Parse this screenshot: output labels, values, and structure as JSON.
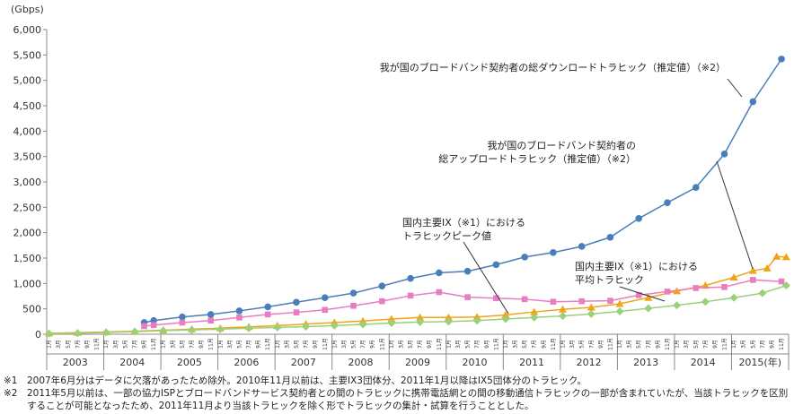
{
  "chart_data": {
    "type": "line",
    "unit_label": "(Gbps)",
    "ylim": [
      0,
      6000
    ],
    "y_ticks": [
      "0",
      "500",
      "1,000",
      "1,500",
      "2,000",
      "2,500",
      "3,000",
      "3,500",
      "4,000",
      "4,500",
      "5,000",
      "5,500",
      "6,000"
    ],
    "month_labels": [
      "1月",
      "3月",
      "5月",
      "7月",
      "9月",
      "11月"
    ],
    "years": [
      "2003",
      "2004",
      "2005",
      "2006",
      "2007",
      "2008",
      "2009",
      "2010",
      "2011",
      "2012",
      "2013",
      "2014",
      "2015(年)"
    ],
    "grid": false,
    "series": [
      {
        "name": "我が国のブロードバンド契約者の総ダウンロードトラヒック（推定値）（※2）",
        "color": "#4a7ebb",
        "marker": "circle",
        "points": [
          [
            "2004-09",
            230
          ],
          [
            "2004-11",
            270
          ],
          [
            "2005-05",
            340
          ],
          [
            "2005-11",
            390
          ],
          [
            "2006-05",
            460
          ],
          [
            "2006-11",
            540
          ],
          [
            "2007-05",
            630
          ],
          [
            "2007-11",
            720
          ],
          [
            "2008-05",
            810
          ],
          [
            "2008-11",
            950
          ],
          [
            "2009-05",
            1100
          ],
          [
            "2009-11",
            1210
          ],
          [
            "2010-05",
            1240
          ],
          [
            "2010-11",
            1370
          ],
          [
            "2011-05",
            1520
          ],
          [
            "2011-11",
            1610
          ],
          [
            "2012-05",
            1730
          ],
          [
            "2012-11",
            1910
          ],
          [
            "2013-05",
            2280
          ],
          [
            "2013-11",
            2590
          ],
          [
            "2014-05",
            2890
          ],
          [
            "2014-11",
            3550
          ],
          [
            "2015-05",
            4580
          ],
          [
            "2015-11",
            5420
          ]
        ]
      },
      {
        "name": "我が国のブロードバンド契約者の総アップロードトラヒック（推定値）（※2）",
        "color": "#f0a418",
        "marker": "triangle",
        "points": [
          [
            "2003-01",
            20
          ],
          [
            "2003-07",
            30
          ],
          [
            "2004-01",
            45
          ],
          [
            "2004-07",
            60
          ],
          [
            "2005-01",
            80
          ],
          [
            "2005-07",
            100
          ],
          [
            "2006-01",
            120
          ],
          [
            "2006-07",
            145
          ],
          [
            "2007-01",
            170
          ],
          [
            "2007-07",
            200
          ],
          [
            "2008-01",
            230
          ],
          [
            "2008-07",
            260
          ],
          [
            "2009-01",
            300
          ],
          [
            "2009-07",
            330
          ],
          [
            "2010-01",
            330
          ],
          [
            "2010-07",
            340
          ],
          [
            "2011-01",
            380
          ],
          [
            "2011-07",
            440
          ],
          [
            "2012-01",
            490
          ],
          [
            "2012-07",
            530
          ],
          [
            "2013-01",
            600
          ],
          [
            "2013-07",
            720
          ],
          [
            "2014-01",
            850
          ],
          [
            "2014-07",
            960
          ],
          [
            "2015-01",
            1120
          ],
          [
            "2015-05",
            1250
          ],
          [
            "2015-08",
            1300
          ],
          [
            "2015-10",
            1530
          ],
          [
            "2015-12",
            1520
          ]
        ]
      },
      {
        "name": "国内主要IX（※1）におけるトラヒックピーク値",
        "color": "#e87dbf",
        "marker": "square",
        "points": [
          [
            "2004-09",
            160
          ],
          [
            "2004-11",
            180
          ],
          [
            "2005-05",
            230
          ],
          [
            "2005-11",
            270
          ],
          [
            "2006-05",
            330
          ],
          [
            "2006-11",
            390
          ],
          [
            "2007-05",
            430
          ],
          [
            "2007-11",
            480
          ],
          [
            "2008-05",
            560
          ],
          [
            "2008-11",
            650
          ],
          [
            "2009-05",
            760
          ],
          [
            "2009-11",
            830
          ],
          [
            "2010-05",
            730
          ],
          [
            "2010-11",
            710
          ],
          [
            "2011-05",
            690
          ],
          [
            "2011-11",
            640
          ],
          [
            "2012-05",
            650
          ],
          [
            "2012-11",
            660
          ],
          [
            "2013-05",
            770
          ],
          [
            "2013-11",
            840
          ],
          [
            "2014-05",
            910
          ],
          [
            "2014-11",
            930
          ],
          [
            "2015-05",
            1070
          ],
          [
            "2015-11",
            1040
          ]
        ]
      },
      {
        "name": "国内主要IX（※1）における平均トラヒック",
        "color": "#9bd07a",
        "marker": "diamond",
        "points": [
          [
            "2003-01",
            10
          ],
          [
            "2003-07",
            20
          ],
          [
            "2004-01",
            35
          ],
          [
            "2004-07",
            50
          ],
          [
            "2005-01",
            70
          ],
          [
            "2005-07",
            85
          ],
          [
            "2006-01",
            100
          ],
          [
            "2006-07",
            120
          ],
          [
            "2007-01",
            135
          ],
          [
            "2007-07",
            150
          ],
          [
            "2008-01",
            170
          ],
          [
            "2008-07",
            195
          ],
          [
            "2009-01",
            220
          ],
          [
            "2009-07",
            240
          ],
          [
            "2010-01",
            250
          ],
          [
            "2010-07",
            270
          ],
          [
            "2011-01",
            300
          ],
          [
            "2011-07",
            330
          ],
          [
            "2012-01",
            360
          ],
          [
            "2012-07",
            400
          ],
          [
            "2013-01",
            450
          ],
          [
            "2013-07",
            510
          ],
          [
            "2014-01",
            570
          ],
          [
            "2014-07",
            640
          ],
          [
            "2015-01",
            720
          ],
          [
            "2015-07",
            810
          ],
          [
            "2015-12",
            960
          ]
        ]
      }
    ],
    "annotations": [
      {
        "series": 0,
        "lines": [
          "我が国のブロードバンド契約者の総ダウンロードトラヒック（推定値）（※2）"
        ]
      },
      {
        "series": 1,
        "lines": [
          "我が国のブロードバンド契約者の",
          "総アップロードトラヒック（推定値）（※2）"
        ]
      },
      {
        "series": 2,
        "lines": [
          "国内主要IX（※1）における",
          "トラヒックピーク値"
        ]
      },
      {
        "series": 3,
        "lines": [
          "国内主要IX（※1）における",
          "平均トラヒック"
        ]
      }
    ]
  },
  "footnotes": [
    {
      "mark": "※1",
      "text": "2007年6月分はデータに欠落があったため除外。2010年11月以前は、主要IX3団体分、2011年1月以降はIX5団体分のトラヒック。"
    },
    {
      "mark": "※2",
      "text": "2011年5月以前は、一部の協力ISPとブロードバンドサービス契約者との間のトラヒックに携帯電話網との間の移動通信トラヒックの一部が含まれていたが、当該トラヒックを区別することが可能となったため、2011年11月より当該トラヒックを除く形でトラヒックの集計・試算を行うこととした。"
    }
  ]
}
